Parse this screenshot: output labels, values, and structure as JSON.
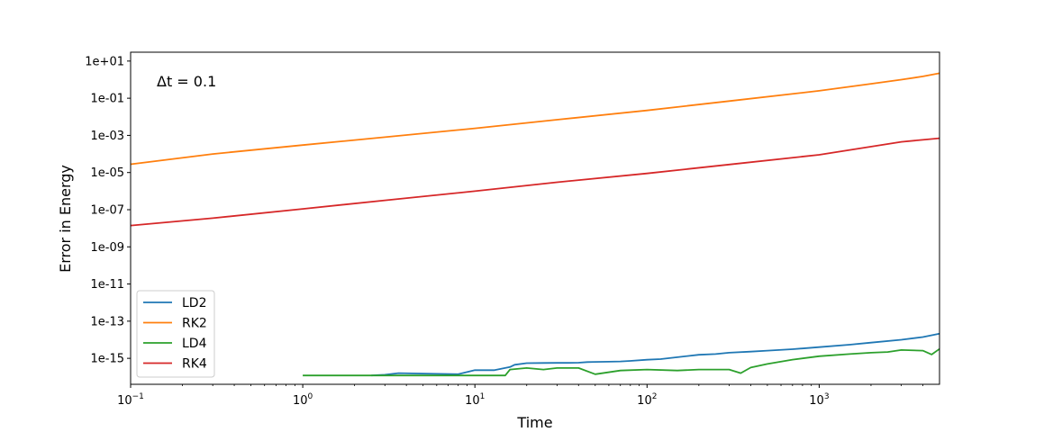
{
  "chart_data": {
    "type": "line",
    "xlabel": "Time",
    "ylabel": "Error in Energy",
    "xscale": "log",
    "yscale": "log",
    "xlim": [
      0.1,
      5000
    ],
    "ylim": [
      4e-17,
      30.0
    ],
    "x_ticks": [
      {
        "value": 0.1,
        "label": "10^-1"
      },
      {
        "value": 1,
        "label": "10^0"
      },
      {
        "value": 10,
        "label": "10^1"
      },
      {
        "value": 100,
        "label": "10^2"
      },
      {
        "value": 1000,
        "label": "10^3"
      }
    ],
    "y_ticks": [
      {
        "value": 1e-15,
        "label": "1e-15"
      },
      {
        "value": 1e-13,
        "label": "1e-13"
      },
      {
        "value": 1e-11,
        "label": "1e-11"
      },
      {
        "value": 1e-09,
        "label": "1e-09"
      },
      {
        "value": 1e-07,
        "label": "1e-07"
      },
      {
        "value": 1e-05,
        "label": "1e-05"
      },
      {
        "value": 0.001,
        "label": "1e-03"
      },
      {
        "value": 0.1,
        "label": "1e-01"
      },
      {
        "value": 10,
        "label": "1e+01"
      }
    ],
    "grid": false,
    "legend": {
      "position": "lower-left",
      "entries": [
        "LD2",
        "RK2",
        "LD4",
        "RK4"
      ]
    },
    "annotation": {
      "text": "Δt = 0.1",
      "position": "top-left"
    },
    "series": [
      {
        "name": "LD2",
        "color": "#1f77b4",
        "x": [
          2.5,
          3.0,
          3.6,
          8,
          10,
          13,
          16,
          17,
          20,
          25,
          30,
          35,
          40,
          45,
          50,
          60,
          70,
          80,
          100,
          120,
          150,
          200,
          250,
          300,
          400,
          500,
          700,
          1000,
          1500,
          2000,
          3000,
          4000,
          5000
        ],
        "y": [
          1.2e-16,
          1.3e-16,
          1.6e-16,
          1.4e-16,
          2.3e-16,
          2.3e-16,
          3.4e-16,
          4.5e-16,
          5.5e-16,
          5.6e-16,
          5.7e-16,
          5.7e-16,
          5.8e-16,
          6.3e-16,
          6.4e-16,
          6.6e-16,
          6.8e-16,
          7.3e-16,
          8.4e-16,
          9.1e-16,
          1.15e-15,
          1.55e-15,
          1.7e-15,
          2e-15,
          2.3e-15,
          2.6e-15,
          3.1e-15,
          4e-15,
          5.4e-15,
          7e-15,
          1e-14,
          1.4e-14,
          2.1e-14
        ]
      },
      {
        "name": "RK2",
        "color": "#ff7f0e",
        "x": [
          0.1,
          0.3,
          1,
          3,
          10,
          30,
          100,
          300,
          1000,
          2000,
          3000,
          4000,
          5000
        ],
        "y": [
          2.8e-05,
          0.0001,
          0.0003,
          0.0008,
          0.0024,
          0.007,
          0.022,
          0.07,
          0.25,
          0.6,
          1.0,
          1.5,
          2.2
        ]
      },
      {
        "name": "LD4",
        "color": "#2ca02c",
        "x": [
          1,
          1.5,
          3,
          4,
          5,
          8,
          15,
          16,
          20,
          25,
          30,
          40,
          50,
          70,
          100,
          150,
          200,
          300,
          350,
          400,
          500,
          700,
          1000,
          1500,
          2000,
          2500,
          3000,
          4000,
          4500,
          5000
        ],
        "y": [
          1.2e-16,
          1.2e-16,
          1.2e-16,
          1.2e-16,
          1.2e-16,
          1.2e-16,
          1.2e-16,
          2.5e-16,
          3e-16,
          2.5e-16,
          3e-16,
          3e-16,
          1.4e-16,
          2.2e-16,
          2.5e-16,
          2.2e-16,
          2.5e-16,
          2.5e-16,
          1.6e-16,
          3.2e-16,
          5e-16,
          8.5e-16,
          1.3e-15,
          1.7e-15,
          2e-15,
          2.2e-15,
          2.8e-15,
          2.6e-15,
          1.6e-15,
          3.2e-15
        ]
      },
      {
        "name": "RK4",
        "color": "#d62728",
        "x": [
          0.1,
          0.3,
          1,
          3,
          10,
          30,
          100,
          300,
          1000,
          3000,
          5000
        ],
        "y": [
          1.4e-08,
          3.5e-08,
          1.1e-07,
          3.2e-07,
          1e-06,
          3e-06,
          9e-06,
          2.7e-05,
          9e-05,
          0.00045,
          0.0007
        ]
      }
    ]
  }
}
